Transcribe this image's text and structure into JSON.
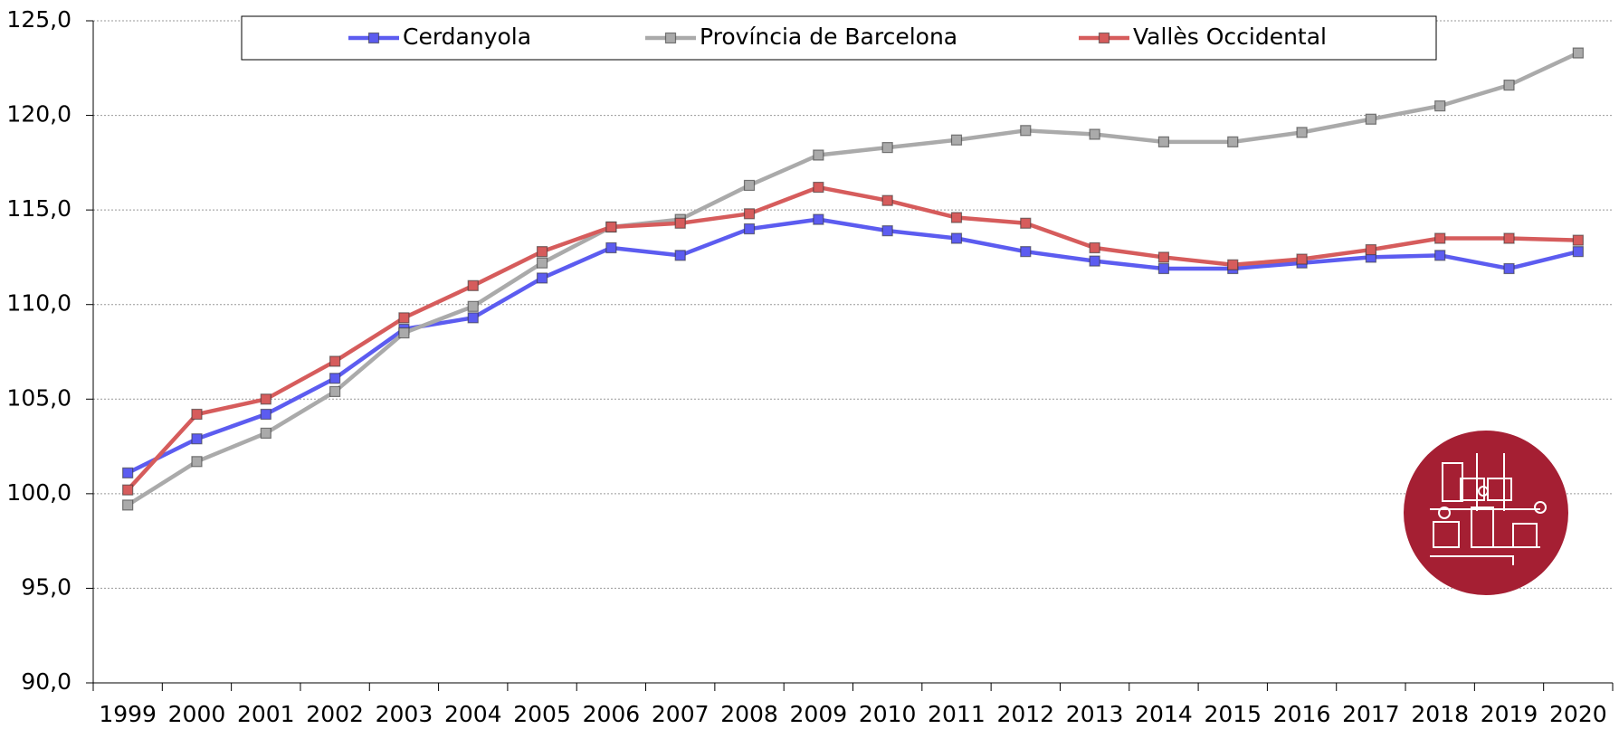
{
  "chart_data": {
    "type": "line",
    "categories": [
      "1999",
      "2000",
      "2001",
      "2002",
      "2003",
      "2004",
      "2005",
      "2006",
      "2007",
      "2008",
      "2009",
      "2010",
      "2011",
      "2012",
      "2013",
      "2014",
      "2015",
      "2016",
      "2017",
      "2018",
      "2019",
      "2020"
    ],
    "series": [
      {
        "name": "Cerdanyola",
        "color": "#5c5cf0",
        "values": [
          101.1,
          102.9,
          104.2,
          106.1,
          108.7,
          109.3,
          111.4,
          113.0,
          112.6,
          114.0,
          114.5,
          113.9,
          113.5,
          112.8,
          112.3,
          111.9,
          111.9,
          112.2,
          112.5,
          112.6,
          111.9,
          112.8
        ]
      },
      {
        "name": "Província de Barcelona",
        "color": "#aaaaaa",
        "values": [
          99.4,
          101.7,
          103.2,
          105.4,
          108.5,
          109.9,
          112.2,
          114.1,
          114.5,
          116.3,
          117.9,
          118.3,
          118.7,
          119.2,
          119.0,
          118.6,
          118.6,
          119.1,
          119.8,
          120.5,
          121.6,
          123.3
        ]
      },
      {
        "name": "Vallès Occidental",
        "color": "#d65c5c",
        "values": [
          100.2,
          104.2,
          105.0,
          107.0,
          109.3,
          111.0,
          112.8,
          114.1,
          114.3,
          114.8,
          116.2,
          115.5,
          114.6,
          114.3,
          113.0,
          112.5,
          112.1,
          112.4,
          112.9,
          113.5,
          113.5,
          113.4
        ]
      }
    ],
    "ylim": [
      90,
      125
    ],
    "yticks": [
      {
        "value": 90,
        "label": "90,0"
      },
      {
        "value": 95,
        "label": "95,0"
      },
      {
        "value": 100,
        "label": "100,0"
      },
      {
        "value": 105,
        "label": "105,0"
      },
      {
        "value": 110,
        "label": "110,0"
      },
      {
        "value": 115,
        "label": "115,0"
      },
      {
        "value": 120,
        "label": "120,0"
      },
      {
        "value": 125,
        "label": "125,0"
      }
    ],
    "grid": true,
    "legend": "top"
  }
}
